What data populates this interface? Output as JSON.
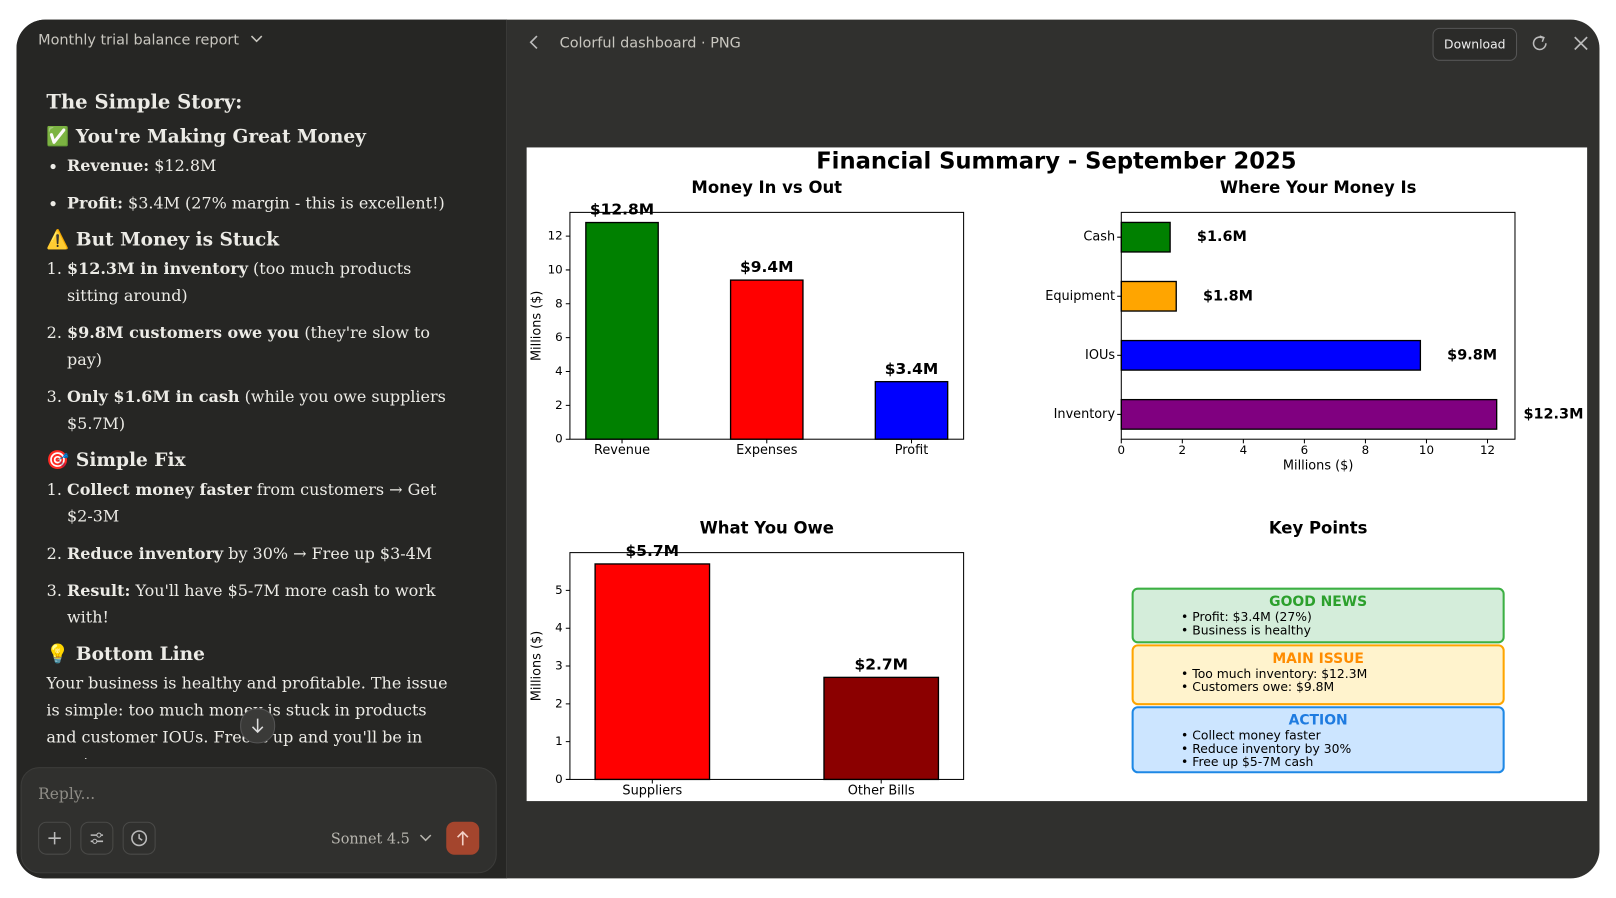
{
  "header": {
    "title": "Monthly trial balance report"
  },
  "chat": {
    "heading": "The Simple Story:",
    "sections": [
      {
        "heading": "✅ You're Making Great Money",
        "items": [
          {
            "bold": "Revenue:",
            "text": "$12.8M"
          },
          {
            "bold": "Profit:",
            "text": "$3.4M (27% margin - this is excellent!)"
          }
        ]
      },
      {
        "heading": "⚠️ But Money is Stuck",
        "items": [
          {
            "bold": "$12.3M in inventory",
            "text": "(too much products sitting around)"
          },
          {
            "bold": "$9.8M customers owe you",
            "text": "(they're slow to pay)"
          },
          {
            "bold": "Only $1.6M in cash",
            "text": "(while you owe suppliers $5.7M)"
          }
        ]
      },
      {
        "heading": "🎯 Simple Fix",
        "items": [
          {
            "bold": "Collect money faster",
            "text": "from customers → Get $2-3M"
          },
          {
            "bold": "Reduce inventory",
            "text": "by 30% → Free up $3-4M"
          },
          {
            "bold": "Result:",
            "text": "You'll have $5-7M more cash to work with!"
          }
        ]
      }
    ],
    "bottom_line": {
      "heading": "💡 Bottom Line",
      "text": "Your business is healthy and profitable. The issue is simple: too much money is stuck in products and customer IOUs. Free it up and you'll be in great"
    }
  },
  "composer": {
    "placeholder": "Reply...",
    "model": "Sonnet 4.5"
  },
  "viewer": {
    "title": "Colorful dashboard · PNG",
    "download": "Download",
    "dashboard_title": "Financial Summary - September 2025"
  },
  "chart_data": [
    {
      "type": "bar",
      "title": "Money In vs Out",
      "categories": [
        "Revenue",
        "Expenses",
        "Profit"
      ],
      "values": [
        12.8,
        9.4,
        3.4
      ],
      "value_labels": [
        "$12.8M",
        "$9.4M",
        "$3.4M"
      ],
      "colors": [
        "#008000",
        "#ff0000",
        "#0000ff"
      ],
      "ylabel": "Millions ($)",
      "ylim": [
        0,
        13.4
      ],
      "yticks": [
        0,
        2,
        4,
        6,
        8,
        10,
        12
      ]
    },
    {
      "type": "barh",
      "title": "Where Your Money Is",
      "categories": [
        "Cash",
        "Equipment",
        "IOUs",
        "Inventory"
      ],
      "values": [
        1.6,
        1.8,
        9.8,
        12.3
      ],
      "value_labels": [
        "$1.6M",
        "$1.8M",
        "$9.8M",
        "$12.3M"
      ],
      "colors": [
        "#008000",
        "#ffa500",
        "#0000ff",
        "#800080"
      ],
      "xlabel": "Millions ($)",
      "xlim": [
        0,
        12.9
      ],
      "xticks": [
        0,
        2,
        4,
        6,
        8,
        10,
        12
      ]
    },
    {
      "type": "bar",
      "title": "What You Owe",
      "categories": [
        "Suppliers",
        "Other Bills"
      ],
      "values": [
        5.7,
        2.7
      ],
      "value_labels": [
        "$5.7M",
        "$2.7M"
      ],
      "colors": [
        "#ff0000",
        "#8b0000"
      ],
      "ylabel": "Millions ($)",
      "ylim": [
        0,
        6
      ],
      "yticks": [
        0,
        1,
        2,
        3,
        4,
        5
      ]
    }
  ],
  "key_points": {
    "title": "Key Points",
    "boxes": [
      {
        "title": "GOOD NEWS",
        "color": "#2ca02c",
        "background": "#d4edda",
        "border": "#3cb043",
        "lines": [
          "• Profit: $3.4M (27%)",
          "• Business is healthy"
        ]
      },
      {
        "title": "MAIN ISSUE",
        "color": "#ff8c00",
        "background": "#fff3cd",
        "border": "#ffa500",
        "lines": [
          "• Too much inventory: $12.3M",
          "• Customers owe: $9.8M"
        ]
      },
      {
        "title": "ACTION",
        "color": "#1e7be0",
        "background": "#cce5ff",
        "border": "#1e88e5",
        "lines": [
          "• Collect money faster",
          "• Reduce inventory by 30%",
          "• Free up $5-7M cash"
        ]
      }
    ]
  }
}
